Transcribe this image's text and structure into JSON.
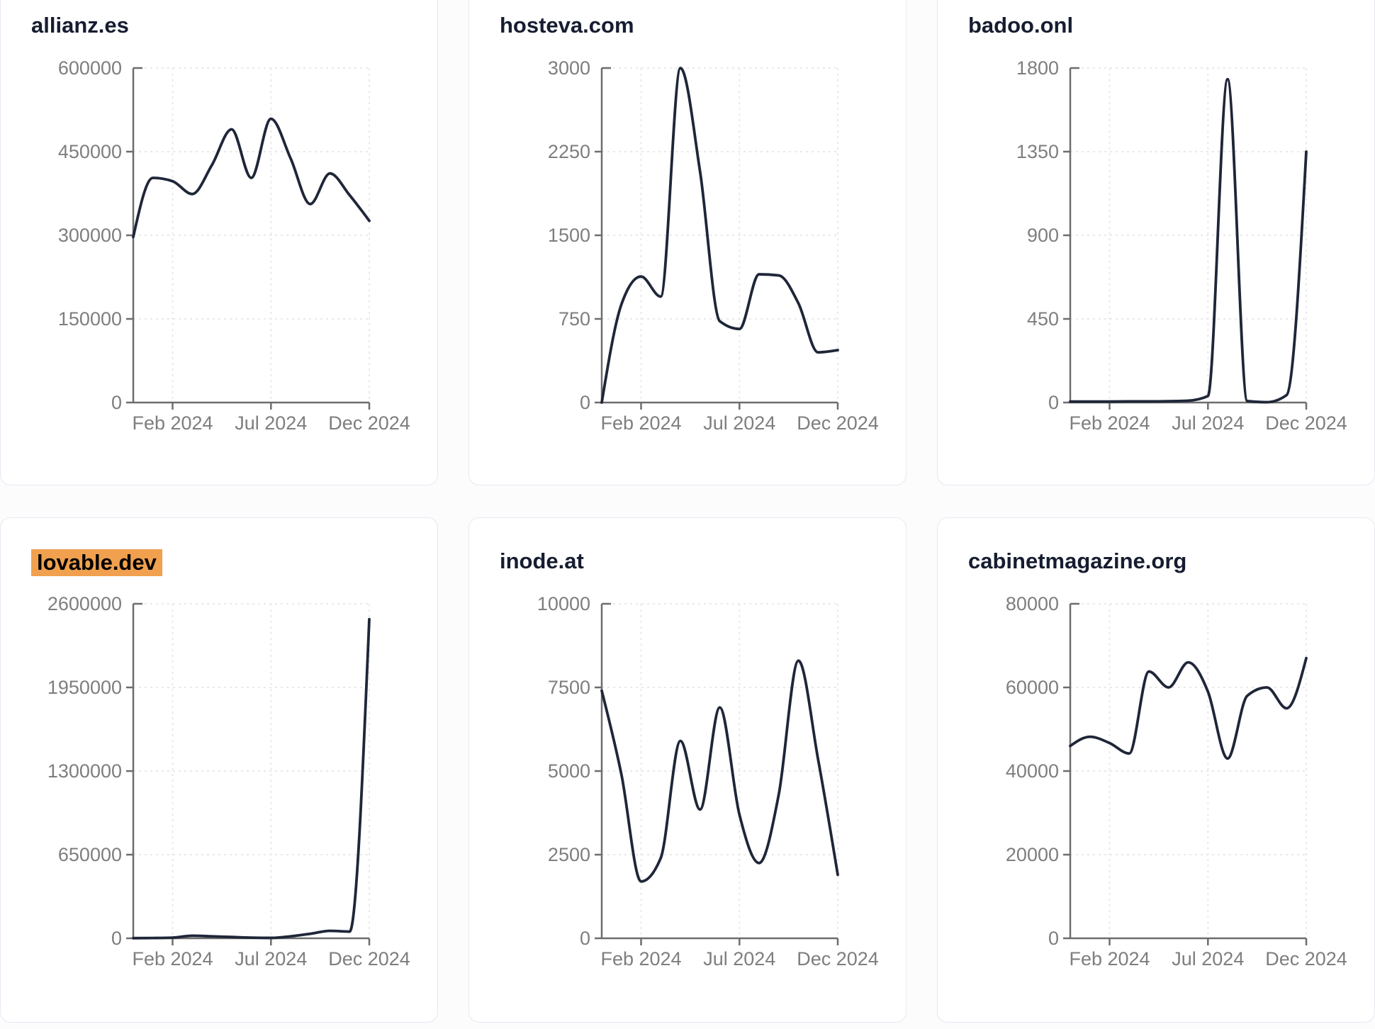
{
  "colors": {
    "line": "#1f2638",
    "title": "#161d30",
    "axis": "#6d6d6d",
    "tick_label": "#7e7e7e",
    "gridline": "#e9e9e9",
    "card_border": "#e6e9f2",
    "card_bg": "#ffffff",
    "page_bg": "#fcfcfd",
    "highlight_bg": "#f0a04e",
    "highlight_text": "#000000"
  },
  "x_axis": {
    "tick_labels": [
      "Feb 2024",
      "Jul 2024",
      "Dec 2024"
    ],
    "tick_indices": [
      2,
      7,
      12
    ],
    "points_per_series": 13
  },
  "chart_data": [
    {
      "type": "line",
      "title": "allianz.es",
      "highlighted": false,
      "ylim": [
        0,
        600000
      ],
      "y_ticks": [
        0,
        150000,
        300000,
        450000,
        600000
      ],
      "x_tick_labels": [
        "Feb 2024",
        "Jul 2024",
        "Dec 2024"
      ],
      "values": [
        297000,
        403000,
        397000,
        374000,
        426000,
        490000,
        403000,
        509000,
        438000,
        356000,
        411000,
        372000,
        326000
      ]
    },
    {
      "type": "line",
      "title": "hosteva.com",
      "highlighted": false,
      "ylim": [
        0,
        3000
      ],
      "y_ticks": [
        0,
        750,
        1500,
        2250,
        3000
      ],
      "x_tick_labels": [
        "Feb 2024",
        "Jul 2024",
        "Dec 2024"
      ],
      "values": [
        0,
        880,
        1130,
        950,
        3000,
        2070,
        730,
        660,
        1150,
        1140,
        890,
        450,
        470
      ]
    },
    {
      "type": "line",
      "title": "badoo.onl",
      "highlighted": false,
      "ylim": [
        0,
        1800
      ],
      "y_ticks": [
        0,
        450,
        900,
        1350,
        1800
      ],
      "x_tick_labels": [
        "Feb 2024",
        "Jul 2024",
        "Dec 2024"
      ],
      "values": [
        5,
        5,
        5,
        6,
        6,
        7,
        10,
        35,
        1740,
        8,
        2,
        40,
        1350
      ]
    },
    {
      "type": "line",
      "title": "lovable.dev",
      "highlighted": true,
      "ylim": [
        0,
        2600000
      ],
      "y_ticks": [
        0,
        650000,
        1300000,
        1950000,
        2600000
      ],
      "x_tick_labels": [
        "Feb 2024",
        "Jul 2024",
        "Dec 2024"
      ],
      "values": [
        1000,
        2000,
        5000,
        20000,
        15000,
        10000,
        5000,
        3000,
        15000,
        35000,
        58000,
        52000,
        2480000
      ]
    },
    {
      "type": "line",
      "title": "inode.at",
      "highlighted": false,
      "ylim": [
        0,
        10000
      ],
      "y_ticks": [
        0,
        2500,
        5000,
        7500,
        10000
      ],
      "x_tick_labels": [
        "Feb 2024",
        "Jul 2024",
        "Dec 2024"
      ],
      "values": [
        7400,
        4900,
        1700,
        2400,
        5900,
        3850,
        6900,
        3700,
        2250,
        4300,
        8300,
        5350,
        1900
      ]
    },
    {
      "type": "line",
      "title": "cabinetmagazine.org",
      "highlighted": false,
      "ylim": [
        0,
        80000
      ],
      "y_ticks": [
        0,
        20000,
        40000,
        60000,
        80000
      ],
      "x_tick_labels": [
        "Feb 2024",
        "Jul 2024",
        "Dec 2024"
      ],
      "values": [
        46000,
        48200,
        46700,
        44200,
        63800,
        60000,
        66000,
        59000,
        43000,
        58000,
        60000,
        55000,
        67000
      ]
    }
  ]
}
